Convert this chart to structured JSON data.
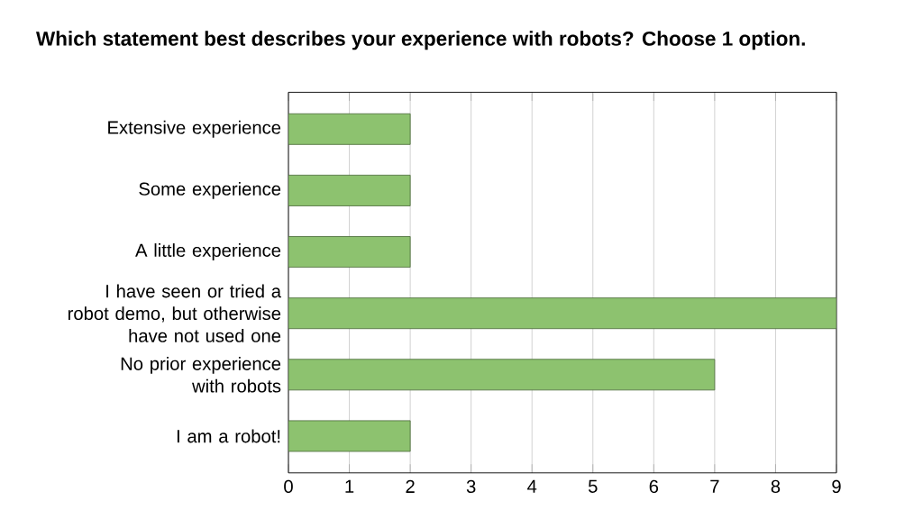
{
  "chart_data": {
    "type": "bar",
    "orientation": "horizontal",
    "title": "Which statement best describes your experience with robots? Choose 1 option.",
    "categories": [
      "Extensive experience",
      "Some experience",
      "A little experience",
      "I have seen or tried a robot demo, but otherwise have not used one",
      "No prior experience with robots",
      "I am a robot!"
    ],
    "values": [
      2,
      2,
      2,
      9,
      7,
      2
    ],
    "color": "#8dc26f",
    "xlim": [
      0,
      9
    ],
    "xticks": [
      0,
      1,
      2,
      3,
      4,
      5,
      6,
      7,
      8,
      9
    ],
    "grid": "x"
  }
}
